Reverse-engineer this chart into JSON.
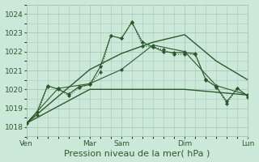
{
  "background_color": "#cce8d8",
  "grid_color": "#a8c8b8",
  "line_color": "#2d5a2d",
  "xlabel": "Pression niveau de la mer( hPa )",
  "xlabel_fontsize": 8,
  "ylim": [
    1017.5,
    1024.5
  ],
  "yticks": [
    1018,
    1019,
    1020,
    1021,
    1022,
    1023,
    1024
  ],
  "xlim": [
    0,
    21
  ],
  "xtick_positions": [
    0,
    6,
    9,
    15,
    21
  ],
  "xtick_labels": [
    "Ven",
    "Mar",
    "Sam",
    "Dim",
    "Lun"
  ],
  "series1_x": [
    0,
    1,
    2,
    3,
    4,
    5,
    6,
    7,
    8,
    9,
    10,
    11,
    12,
    13,
    14,
    15,
    16,
    17,
    18,
    19,
    20,
    21
  ],
  "series1_y": [
    1018.2,
    1018.65,
    1020.15,
    1020.05,
    1019.65,
    1020.1,
    1020.25,
    1020.9,
    1022.85,
    1022.7,
    1023.6,
    1022.3,
    1022.25,
    1022.1,
    1021.85,
    1021.85,
    1021.85,
    1020.55,
    1020.1,
    1019.25,
    1020.05,
    1019.6
  ],
  "series2_x": [
    0,
    1,
    2,
    3,
    4,
    5,
    6,
    7,
    8,
    9,
    10,
    11,
    12,
    13,
    14,
    15,
    16,
    17,
    18,
    19,
    20,
    21
  ],
  "series2_y": [
    1018.2,
    1018.8,
    1020.2,
    1020.0,
    1019.75,
    1020.15,
    1020.25,
    1021.2,
    1022.85,
    1022.7,
    1023.55,
    1022.5,
    1022.25,
    1022.0,
    1021.95,
    1021.95,
    1021.9,
    1020.5,
    1020.15,
    1019.35,
    1020.05,
    1019.65
  ],
  "series3_x": [
    0,
    3,
    6,
    9,
    12,
    15,
    18,
    21
  ],
  "series3_y": [
    1018.2,
    1020.05,
    1020.3,
    1021.05,
    1022.35,
    1022.0,
    1020.2,
    1019.7
  ],
  "series4_x": [
    0,
    6,
    9,
    12,
    15,
    18,
    21
  ],
  "series4_y": [
    1018.2,
    1020.0,
    1020.0,
    1020.0,
    1020.0,
    1019.85,
    1019.7
  ],
  "series5_x": [
    0,
    6,
    9,
    12,
    15,
    18,
    21
  ],
  "series5_y": [
    1018.2,
    1021.05,
    1021.9,
    1022.5,
    1022.9,
    1021.5,
    1020.5
  ]
}
